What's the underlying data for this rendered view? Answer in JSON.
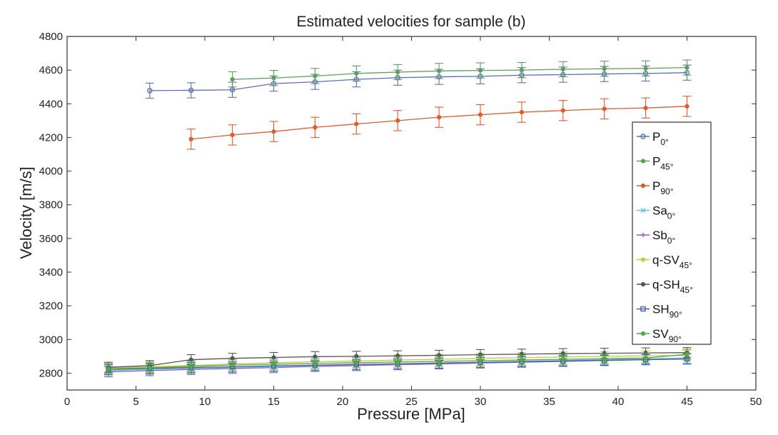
{
  "chart_data": {
    "type": "line",
    "title": "Estimated velocities for sample (b)",
    "xlabel": "Pressure [MPa]",
    "ylabel": "Velocity [m/s]",
    "xlim": [
      0,
      50
    ],
    "ylim": [
      2700,
      4800
    ],
    "xticks": [
      0,
      5,
      10,
      15,
      20,
      25,
      30,
      35,
      40,
      45,
      50
    ],
    "yticks": [
      2800,
      3000,
      3200,
      3400,
      3600,
      3800,
      4000,
      4200,
      4400,
      4600,
      4800
    ],
    "legend_position": "right",
    "series": [
      {
        "name": "P",
        "sub": "0°",
        "color": "#5a6fb8",
        "marker": "o",
        "x": [
          6,
          9,
          12,
          15,
          18,
          21,
          24,
          27,
          30,
          33,
          36,
          39,
          42,
          45
        ],
        "y": [
          4478,
          4480,
          4483,
          4520,
          4530,
          4545,
          4555,
          4560,
          4563,
          4570,
          4573,
          4577,
          4580,
          4585
        ],
        "err": 45
      },
      {
        "name": "P",
        "sub": "45°",
        "color": "#5aa05a",
        "marker": "*",
        "x": [
          12,
          15,
          18,
          21,
          24,
          27,
          30,
          33,
          36,
          39,
          42,
          45
        ],
        "y": [
          4545,
          4553,
          4565,
          4580,
          4588,
          4595,
          4598,
          4600,
          4605,
          4608,
          4610,
          4615
        ],
        "err": 45
      },
      {
        "name": "P",
        "sub": "90°",
        "color": "#e05a2a",
        "marker": "*",
        "x": [
          9,
          12,
          15,
          18,
          21,
          24,
          27,
          30,
          33,
          36,
          39,
          42,
          45
        ],
        "y": [
          4190,
          4215,
          4235,
          4260,
          4280,
          4300,
          4320,
          4335,
          4350,
          4360,
          4370,
          4375,
          4385
        ],
        "err": 60
      },
      {
        "name": "Sa",
        "sub": "0°",
        "color": "#5fc4d6",
        "marker": "x",
        "x": [
          3,
          6,
          9,
          12,
          15,
          18,
          21,
          24,
          27,
          30,
          33,
          36,
          39,
          42,
          45
        ],
        "y": [
          2815,
          2822,
          2828,
          2835,
          2840,
          2845,
          2850,
          2855,
          2860,
          2865,
          2870,
          2875,
          2880,
          2885,
          2890
        ],
        "err": 30
      },
      {
        "name": "Sb",
        "sub": "0°",
        "color": "#9b59b6",
        "marker": "+",
        "x": [
          3,
          6,
          9,
          12,
          15,
          18,
          21,
          24,
          27,
          30,
          33,
          36,
          39,
          42,
          45
        ],
        "y": [
          2808,
          2815,
          2822,
          2828,
          2833,
          2840,
          2845,
          2850,
          2855,
          2860,
          2865,
          2870,
          2875,
          2880,
          2885
        ],
        "err": 30
      },
      {
        "name": "q-SV",
        "sub": "45°",
        "color": "#c8c83c",
        "marker": "*",
        "x": [
          3,
          6,
          9,
          12,
          15,
          18,
          21,
          24,
          27,
          30,
          33,
          36,
          39,
          42,
          45
        ],
        "y": [
          2830,
          2838,
          2845,
          2855,
          2862,
          2868,
          2872,
          2878,
          2882,
          2888,
          2892,
          2896,
          2900,
          2903,
          2905
        ],
        "err": 30
      },
      {
        "name": "q-SH",
        "sub": "45°",
        "color": "#555555",
        "marker": "*",
        "x": [
          3,
          6,
          9,
          12,
          15,
          18,
          21,
          24,
          27,
          30,
          33,
          36,
          39,
          42,
          45
        ],
        "y": [
          2835,
          2845,
          2880,
          2888,
          2893,
          2898,
          2900,
          2903,
          2906,
          2910,
          2913,
          2916,
          2918,
          2920,
          2922
        ],
        "err": 30
      },
      {
        "name": "SH",
        "sub": "90°",
        "color": "#4a5ea8",
        "marker": "s",
        "x": [
          3,
          6,
          9,
          12,
          15,
          18,
          21,
          24,
          27,
          30,
          33,
          36,
          39,
          42,
          45
        ],
        "y": [
          2822,
          2828,
          2833,
          2838,
          2843,
          2848,
          2852,
          2856,
          2860,
          2864,
          2868,
          2872,
          2876,
          2880,
          2884
        ],
        "err": 30
      },
      {
        "name": "SV",
        "sub": "90°",
        "color": "#4caa4c",
        "marker": "*",
        "x": [
          3,
          6,
          9,
          12,
          15,
          18,
          21,
          24,
          27,
          30,
          33,
          36,
          39,
          42,
          45
        ],
        "y": [
          2825,
          2832,
          2840,
          2848,
          2853,
          2858,
          2862,
          2866,
          2870,
          2874,
          2878,
          2882,
          2886,
          2890,
          2912
        ],
        "err": 30
      }
    ]
  }
}
